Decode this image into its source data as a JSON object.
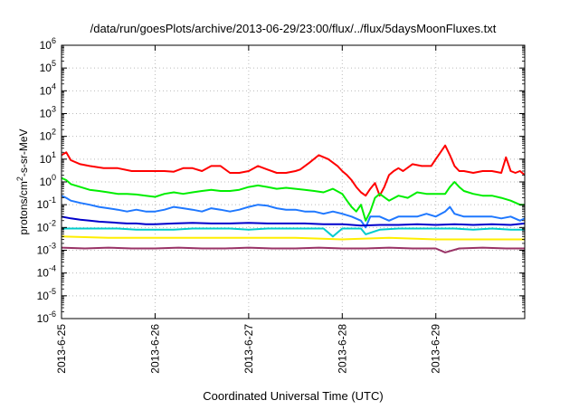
{
  "chart_data": {
    "type": "line",
    "title": "/data/run/goesPlots/archive/2013-06-29/23:00/flux/../flux/5daysMoonFluxes.txt",
    "xlabel": "Coordinated Universal Time (UTC)",
    "ylabel": {
      "parts": [
        {
          "text": "protons/cm",
          "sup": false
        },
        {
          "text": "2",
          "sup": true
        },
        {
          "text": "-s-sr-MeV",
          "sup": false
        }
      ]
    },
    "x_ticks": [
      "2013-6-25",
      "2013-6-26",
      "2013-6-27",
      "2013-6-28",
      "2013-6-29"
    ],
    "x_range_days": [
      0,
      4.95
    ],
    "y_scale": "log",
    "y_ticks": [
      {
        "base": "10",
        "exp": "6",
        "value": 1000000.0
      },
      {
        "base": "10",
        "exp": "5",
        "value": 100000.0
      },
      {
        "base": "10",
        "exp": "4",
        "value": 10000.0
      },
      {
        "base": "10",
        "exp": "3",
        "value": 1000.0
      },
      {
        "base": "10",
        "exp": "2",
        "value": 100.0
      },
      {
        "base": "10",
        "exp": "1",
        "value": 10.0
      },
      {
        "base": "10",
        "exp": "0",
        "value": 1.0
      },
      {
        "base": "10",
        "exp": "-1",
        "value": 0.1
      },
      {
        "base": "10",
        "exp": "-2",
        "value": 0.01
      },
      {
        "base": "10",
        "exp": "-3",
        "value": 0.001
      },
      {
        "base": "10",
        "exp": "-4",
        "value": 0.0001
      },
      {
        "base": "10",
        "exp": "-5",
        "value": 1e-05
      },
      {
        "base": "10",
        "exp": "-6",
        "value": 1e-06
      }
    ],
    "ylim": [
      1e-06,
      1000000.0
    ],
    "grid": true,
    "series": [
      {
        "color": "#ff0000",
        "x": [
          0.0,
          0.05,
          0.1,
          0.2,
          0.3,
          0.45,
          0.6,
          0.75,
          0.9,
          1.0,
          1.1,
          1.2,
          1.3,
          1.4,
          1.5,
          1.6,
          1.7,
          1.8,
          1.9,
          2.0,
          2.1,
          2.2,
          2.3,
          2.4,
          2.5,
          2.55,
          2.65,
          2.75,
          2.85,
          2.95,
          3.0,
          3.05,
          3.1,
          3.15,
          3.2,
          3.25,
          3.3,
          3.35,
          3.4,
          3.45,
          3.5,
          3.55,
          3.6,
          3.65,
          3.75,
          3.85,
          3.95,
          4.0,
          4.05,
          4.1,
          4.15,
          4.2,
          4.25,
          4.3,
          4.4,
          4.5,
          4.6,
          4.7,
          4.75,
          4.8,
          4.85,
          4.9,
          4.95
        ],
        "y": [
          15,
          20,
          9,
          6,
          5,
          4,
          4,
          3,
          3,
          3,
          3,
          2.8,
          4,
          4,
          3,
          5,
          5,
          2.5,
          2.5,
          3,
          5,
          3.5,
          2.5,
          2.5,
          3,
          3.5,
          7,
          15,
          10,
          5,
          3,
          2,
          1.2,
          0.6,
          0.35,
          0.25,
          0.5,
          0.9,
          0.25,
          0.6,
          2,
          3,
          4,
          3,
          6,
          5,
          5,
          10,
          20,
          40,
          15,
          5,
          3,
          3,
          2.5,
          3,
          3,
          2.5,
          12,
          3,
          2.5,
          3,
          2
        ]
      },
      {
        "color": "#00ee00",
        "x": [
          0.0,
          0.05,
          0.1,
          0.2,
          0.3,
          0.4,
          0.5,
          0.6,
          0.7,
          0.8,
          0.9,
          1.0,
          1.1,
          1.2,
          1.3,
          1.4,
          1.5,
          1.6,
          1.7,
          1.8,
          1.9,
          2.0,
          2.1,
          2.2,
          2.3,
          2.4,
          2.5,
          2.6,
          2.7,
          2.8,
          2.9,
          3.0,
          3.05,
          3.1,
          3.15,
          3.2,
          3.25,
          3.3,
          3.35,
          3.4,
          3.5,
          3.6,
          3.7,
          3.8,
          3.9,
          4.0,
          4.1,
          4.15,
          4.2,
          4.25,
          4.3,
          4.4,
          4.5,
          4.6,
          4.7,
          4.8,
          4.9,
          4.95
        ],
        "y": [
          1.5,
          1.2,
          0.8,
          0.6,
          0.45,
          0.4,
          0.35,
          0.3,
          0.3,
          0.28,
          0.25,
          0.22,
          0.3,
          0.35,
          0.3,
          0.35,
          0.4,
          0.45,
          0.4,
          0.4,
          0.45,
          0.6,
          0.7,
          0.6,
          0.5,
          0.55,
          0.5,
          0.45,
          0.4,
          0.35,
          0.5,
          0.3,
          0.15,
          0.08,
          0.05,
          0.1,
          0.02,
          0.05,
          0.2,
          0.3,
          0.15,
          0.25,
          0.2,
          0.35,
          0.3,
          0.3,
          0.3,
          0.6,
          1.0,
          0.6,
          0.4,
          0.3,
          0.25,
          0.25,
          0.2,
          0.15,
          0.1,
          0.1
        ]
      },
      {
        "color": "#1f78ff",
        "x": [
          0.0,
          0.05,
          0.1,
          0.2,
          0.3,
          0.4,
          0.5,
          0.6,
          0.7,
          0.8,
          0.9,
          1.0,
          1.1,
          1.2,
          1.3,
          1.4,
          1.5,
          1.6,
          1.7,
          1.8,
          1.9,
          2.0,
          2.1,
          2.2,
          2.3,
          2.4,
          2.5,
          2.6,
          2.7,
          2.8,
          2.9,
          3.0,
          3.1,
          3.2,
          3.25,
          3.3,
          3.4,
          3.5,
          3.6,
          3.7,
          3.8,
          3.9,
          4.0,
          4.1,
          4.15,
          4.2,
          4.3,
          4.4,
          4.5,
          4.6,
          4.7,
          4.8,
          4.9,
          4.95
        ],
        "y": [
          0.25,
          0.2,
          0.15,
          0.12,
          0.1,
          0.08,
          0.07,
          0.06,
          0.05,
          0.06,
          0.05,
          0.05,
          0.06,
          0.08,
          0.07,
          0.06,
          0.05,
          0.07,
          0.06,
          0.05,
          0.06,
          0.08,
          0.1,
          0.09,
          0.07,
          0.06,
          0.06,
          0.05,
          0.05,
          0.04,
          0.05,
          0.04,
          0.03,
          0.02,
          0.01,
          0.03,
          0.03,
          0.02,
          0.03,
          0.03,
          0.03,
          0.04,
          0.03,
          0.05,
          0.08,
          0.04,
          0.03,
          0.03,
          0.03,
          0.03,
          0.025,
          0.03,
          0.02,
          0.025
        ]
      },
      {
        "color": "#0000cc",
        "x": [
          0.0,
          0.1,
          0.2,
          0.3,
          0.4,
          0.5,
          0.6,
          0.7,
          0.8,
          0.9,
          1.0,
          1.2,
          1.4,
          1.6,
          1.8,
          2.0,
          2.2,
          2.4,
          2.6,
          2.8,
          3.0,
          3.2,
          3.4,
          3.6,
          3.8,
          4.0,
          4.2,
          4.4,
          4.6,
          4.8,
          4.95
        ],
        "y": [
          0.03,
          0.025,
          0.022,
          0.02,
          0.018,
          0.017,
          0.016,
          0.015,
          0.015,
          0.014,
          0.014,
          0.015,
          0.016,
          0.015,
          0.015,
          0.016,
          0.015,
          0.015,
          0.015,
          0.014,
          0.014,
          0.012,
          0.013,
          0.013,
          0.014,
          0.013,
          0.014,
          0.013,
          0.014,
          0.013,
          0.015
        ]
      },
      {
        "color": "#00cccc",
        "x": [
          0.0,
          0.2,
          0.4,
          0.6,
          0.8,
          1.0,
          1.2,
          1.4,
          1.6,
          1.8,
          2.0,
          2.2,
          2.4,
          2.6,
          2.8,
          2.9,
          3.0,
          3.2,
          3.25,
          3.4,
          3.6,
          3.8,
          4.0,
          4.2,
          4.4,
          4.6,
          4.8,
          4.95
        ],
        "y": [
          0.009,
          0.009,
          0.009,
          0.009,
          0.008,
          0.008,
          0.008,
          0.009,
          0.009,
          0.009,
          0.008,
          0.009,
          0.009,
          0.009,
          0.009,
          0.004,
          0.009,
          0.009,
          0.005,
          0.008,
          0.009,
          0.009,
          0.009,
          0.009,
          0.008,
          0.009,
          0.008,
          0.008
        ]
      },
      {
        "color": "#ffee00",
        "x": [
          0.0,
          0.5,
          1.0,
          1.5,
          2.0,
          2.5,
          3.0,
          3.5,
          4.0,
          4.5,
          4.95
        ],
        "y": [
          0.004,
          0.0035,
          0.0035,
          0.0035,
          0.0035,
          0.0035,
          0.003,
          0.0035,
          0.003,
          0.003,
          0.003
        ]
      },
      {
        "color": "#993366",
        "x": [
          0.0,
          0.25,
          0.5,
          0.75,
          1.0,
          1.25,
          1.5,
          1.75,
          2.0,
          2.25,
          2.5,
          2.75,
          3.0,
          3.25,
          3.5,
          3.75,
          4.0,
          4.1,
          4.25,
          4.5,
          4.75,
          4.95
        ],
        "y": [
          0.0013,
          0.0012,
          0.0013,
          0.0012,
          0.0012,
          0.0013,
          0.0012,
          0.0012,
          0.0013,
          0.0012,
          0.0012,
          0.0013,
          0.0012,
          0.0012,
          0.0013,
          0.0012,
          0.0012,
          0.0008,
          0.0012,
          0.0013,
          0.0012,
          0.0012
        ]
      }
    ]
  }
}
